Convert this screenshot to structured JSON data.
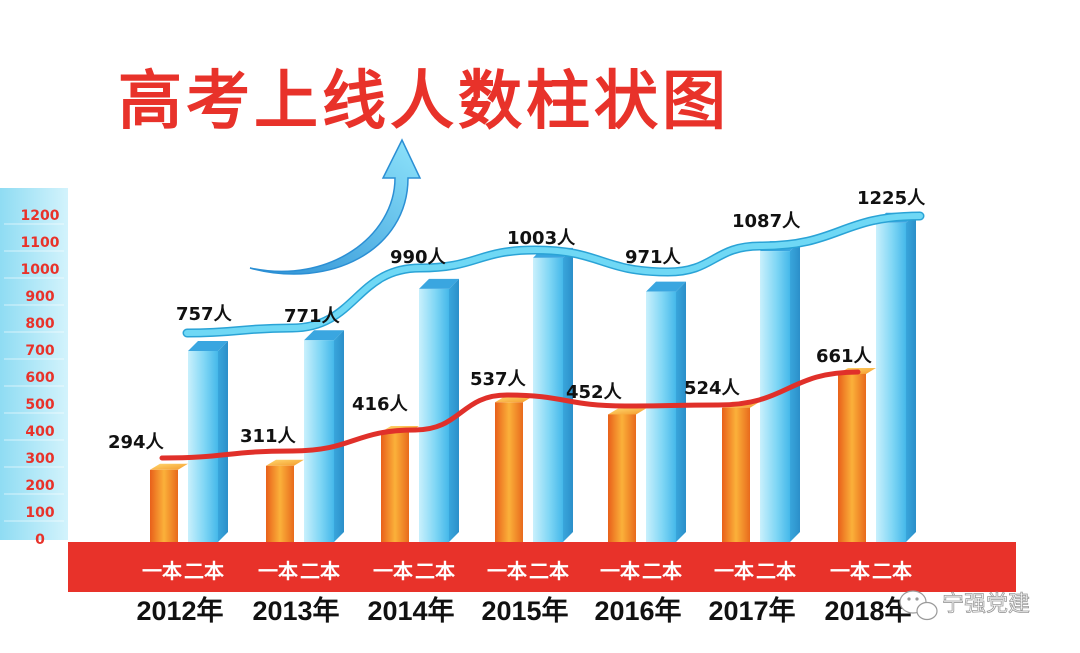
{
  "chart_data": {
    "type": "bar",
    "title": "高考上线人数柱状图",
    "categories": [
      "2012年",
      "2013年",
      "2014年",
      "2015年",
      "2016年",
      "2017年",
      "2018年"
    ],
    "series": [
      {
        "name": "一本",
        "values": [
          294,
          311,
          416,
          537,
          452,
          524,
          661
        ],
        "labels": [
          "294人",
          "311人",
          "416人",
          "537人",
          "452人",
          "524人",
          "661人"
        ],
        "bar_values": [
          260,
          275,
          400,
          510,
          465,
          490,
          615
        ],
        "color": "#f08a1e",
        "line_color": "#e0302a"
      },
      {
        "name": "二本",
        "values": [
          757,
          771,
          990,
          1003,
          971,
          1087,
          1225
        ],
        "labels": [
          "757人",
          "771人",
          "990人",
          "1003人",
          "971人",
          "1087人",
          "1225人"
        ],
        "bar_values": [
          700,
          740,
          930,
          1045,
          920,
          1070,
          1175
        ],
        "color": "#58c4ef",
        "line_color": "#6fd8f5"
      }
    ],
    "yticks": [
      0,
      100,
      200,
      300,
      400,
      500,
      600,
      700,
      800,
      900,
      1000,
      1100,
      1200
    ],
    "ylim": [
      0,
      1200
    ],
    "grid": false,
    "legend": "none"
  },
  "watermark": "宁强党建",
  "colors": {
    "title": "#e8322a",
    "band": "#e8322a",
    "axis_bg": "#a9e6f7",
    "tick": "#e8322a",
    "arrow": "#5ccaf0"
  }
}
